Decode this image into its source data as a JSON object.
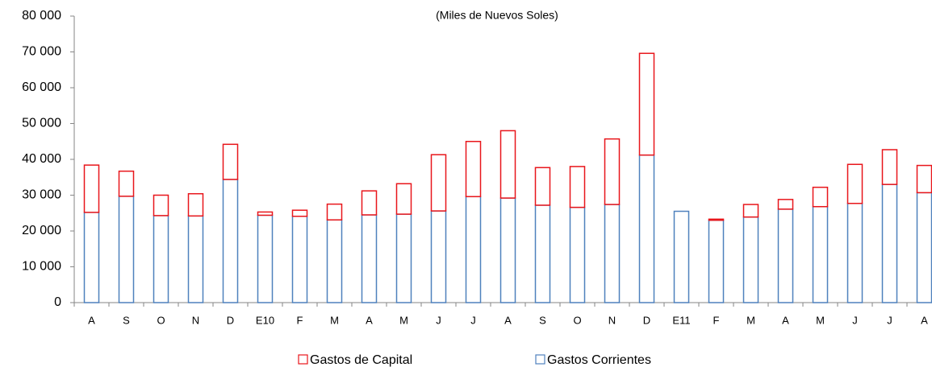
{
  "chart_data": {
    "type": "stacked_bar",
    "subtitle": "(Miles de Nuevos Soles)",
    "categories": [
      "A",
      "S",
      "O",
      "N",
      "D",
      "E10",
      "F",
      "M",
      "A",
      "M",
      "J",
      "J",
      "A",
      "S",
      "O",
      "N",
      "D",
      "E11",
      "F",
      "M",
      "A",
      "M",
      "J",
      "J",
      "A"
    ],
    "series": [
      {
        "name": "Gastos Corrientes",
        "color": "#4f81bd",
        "values": [
          25200,
          29700,
          24300,
          24200,
          34400,
          24400,
          24100,
          23100,
          24500,
          24700,
          25600,
          29600,
          29200,
          27200,
          26600,
          27400,
          41200,
          25500,
          23000,
          23900,
          26100,
          26800,
          27700,
          33000,
          30700
        ]
      },
      {
        "name": "Gastos de Capital",
        "color": "#e8161b",
        "values": [
          13200,
          7000,
          5700,
          6200,
          9800,
          900,
          1700,
          4400,
          6700,
          8500,
          15700,
          15400,
          18800,
          10500,
          11400,
          18300,
          28400,
          0,
          300,
          3500,
          2700,
          5400,
          10900,
          9700,
          7600
        ]
      }
    ],
    "ylim": [
      0,
      80000
    ],
    "yticks": [
      0,
      {
        "value": 10000,
        "label": "10 000"
      },
      {
        "value": 20000,
        "label": "20 000"
      },
      {
        "value": 30000,
        "label": "30 000"
      },
      {
        "value": 40000,
        "label": "40 000"
      },
      {
        "value": 50000,
        "label": "50 000"
      },
      {
        "value": 60000,
        "label": "60 000"
      },
      {
        "value": 70000,
        "label": "70 000"
      },
      {
        "value": 80000,
        "label": "80 000"
      }
    ]
  }
}
